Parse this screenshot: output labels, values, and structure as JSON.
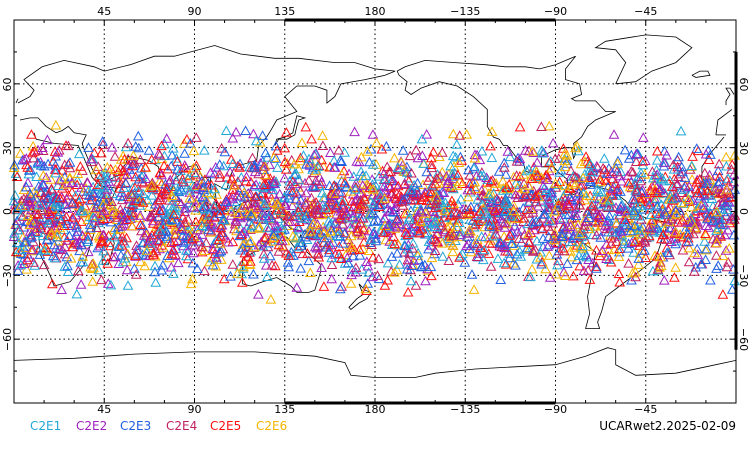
{
  "map": {
    "projection": "equirectangular",
    "lon_range": [
      0,
      360
    ],
    "lat_range": [
      -90,
      90
    ],
    "lon_gridlines": [
      45,
      90,
      135,
      180,
      225,
      270,
      315
    ],
    "lat_gridlines": [
      -60,
      -30,
      0,
      30,
      60
    ],
    "top_tick_labels": [
      "45",
      "90",
      "135",
      "180",
      "−135",
      "−90",
      "−45"
    ],
    "bottom_tick_labels": [
      "45",
      "90",
      "135",
      "180",
      "−135",
      "−90",
      "−45"
    ],
    "left_tick_labels": [
      "60",
      "30",
      "0",
      "−30",
      "−60"
    ],
    "right_tick_labels": [
      "60",
      "30",
      "0",
      "−30",
      "−60"
    ],
    "observation_band_lat": [
      -45,
      45
    ],
    "marker_shape": "triangle-open",
    "marker_density": "dense"
  },
  "legend": {
    "items": [
      {
        "label": "C2E1",
        "color": "#22a8d8"
      },
      {
        "label": "C2E2",
        "color": "#a020c0"
      },
      {
        "label": "C2E3",
        "color": "#2060e0"
      },
      {
        "label": "C2E4",
        "color": "#c02060"
      },
      {
        "label": "C2E5",
        "color": "#ff1010"
      },
      {
        "label": "C2E6",
        "color": "#f5b400"
      }
    ]
  },
  "run_label": "UCARwet2.2025-02-09"
}
